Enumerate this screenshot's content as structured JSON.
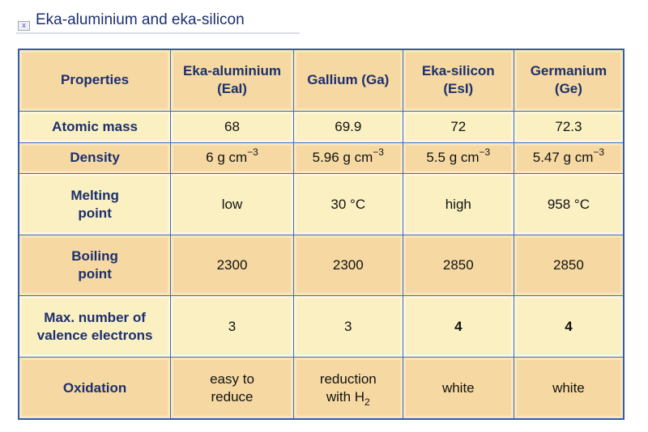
{
  "title": "Eka-aluminium and eka-silicon",
  "close_icon": "close-icon",
  "headers": [
    "Properties",
    "Eka-aluminium (EaI)",
    "Gallium (Ga)",
    "Eka-silicon (EsI)",
    "Germanium (Ge)"
  ],
  "rows": [
    {
      "property": "Atomic mass",
      "values": [
        "68",
        "69.9",
        "72",
        "72.3"
      ]
    },
    {
      "property": "Density",
      "values": [
        "6 g cm",
        "5.96 g cm",
        "5.5 g cm",
        "5.47 g cm"
      ],
      "unit_exponent": "−3"
    },
    {
      "property": "Melting point",
      "values": [
        "low",
        "30 °C",
        "high",
        "958 °C"
      ]
    },
    {
      "property": "Boiling point",
      "values": [
        "2300",
        "2300",
        "2850",
        "2850"
      ]
    },
    {
      "property": "Max. number of valence electrons",
      "values": [
        "3",
        "3",
        "4",
        "4"
      ]
    },
    {
      "property": "Oxidation",
      "values": [
        "easy to reduce",
        "reduction with H",
        "white",
        "white"
      ],
      "subscript": "2"
    }
  ],
  "colors": {
    "header_text": "#1c2f6e",
    "row_orange": "#f6d9a2",
    "row_light": "#fbf0c2",
    "border": "#3a6cc0"
  }
}
